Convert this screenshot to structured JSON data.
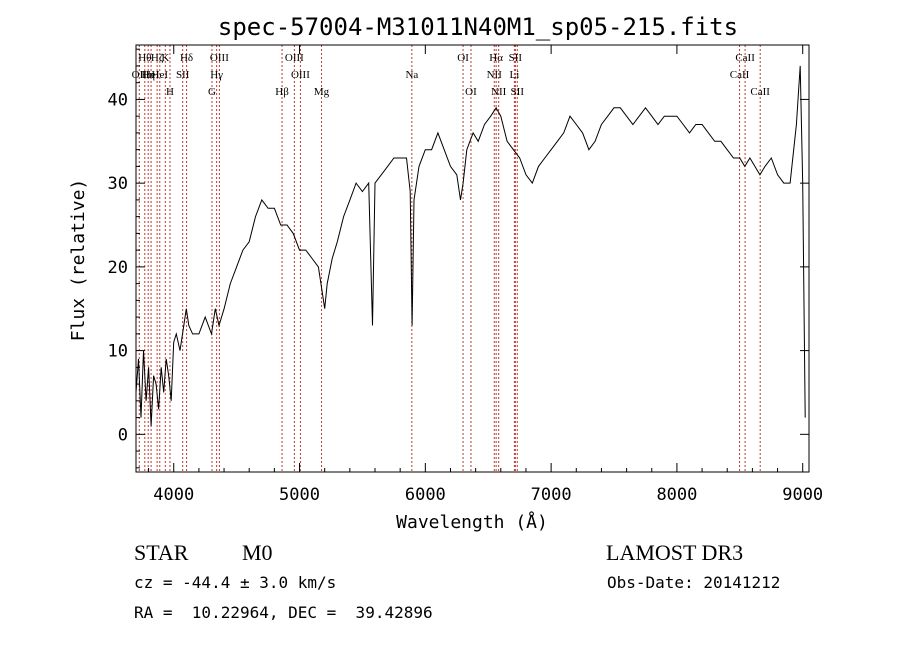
{
  "chart_data": {
    "type": "line",
    "title": "spec-57004-M31011N40M1_sp05-215.fits",
    "xlabel": "Wavelength (Å)",
    "ylabel": "Flux (relative)",
    "xlim": [
      3700,
      9050
    ],
    "ylim": [
      -4.5,
      46.5
    ],
    "x_ticks": [
      4000,
      5000,
      6000,
      7000,
      8000,
      9000
    ],
    "x_tick_labels": [
      "4000",
      "5000",
      "6000",
      "7000",
      "8000",
      "9000"
    ],
    "y_ticks": [
      0,
      10,
      20,
      30,
      40
    ],
    "y_tick_labels": [
      "0",
      "10",
      "20",
      "30",
      "40"
    ],
    "spectrum": [
      [
        3700,
        5
      ],
      [
        3720,
        9
      ],
      [
        3740,
        2
      ],
      [
        3760,
        10
      ],
      [
        3780,
        4
      ],
      [
        3800,
        8
      ],
      [
        3820,
        1
      ],
      [
        3840,
        7
      ],
      [
        3860,
        6
      ],
      [
        3880,
        3
      ],
      [
        3900,
        8
      ],
      [
        3920,
        5
      ],
      [
        3940,
        9
      ],
      [
        3960,
        7
      ],
      [
        3980,
        4
      ],
      [
        4000,
        11
      ],
      [
        4020,
        12
      ],
      [
        4050,
        10
      ],
      [
        4080,
        13
      ],
      [
        4100,
        15
      ],
      [
        4120,
        13
      ],
      [
        4150,
        12
      ],
      [
        4200,
        12
      ],
      [
        4250,
        14
      ],
      [
        4300,
        12
      ],
      [
        4330,
        15
      ],
      [
        4360,
        13
      ],
      [
        4400,
        15
      ],
      [
        4450,
        18
      ],
      [
        4500,
        20
      ],
      [
        4550,
        22
      ],
      [
        4600,
        23
      ],
      [
        4650,
        26
      ],
      [
        4700,
        28
      ],
      [
        4750,
        27
      ],
      [
        4800,
        27
      ],
      [
        4850,
        25
      ],
      [
        4900,
        25
      ],
      [
        4950,
        24
      ],
      [
        5000,
        22
      ],
      [
        5050,
        22
      ],
      [
        5100,
        21
      ],
      [
        5150,
        20
      ],
      [
        5180,
        17
      ],
      [
        5200,
        15
      ],
      [
        5220,
        18
      ],
      [
        5260,
        21
      ],
      [
        5300,
        23
      ],
      [
        5350,
        26
      ],
      [
        5400,
        28
      ],
      [
        5450,
        30
      ],
      [
        5500,
        29
      ],
      [
        5550,
        30
      ],
      [
        5580,
        13
      ],
      [
        5600,
        30
      ],
      [
        5650,
        31
      ],
      [
        5700,
        32
      ],
      [
        5750,
        33
      ],
      [
        5800,
        33
      ],
      [
        5850,
        33
      ],
      [
        5880,
        29
      ],
      [
        5895,
        13
      ],
      [
        5910,
        28
      ],
      [
        5950,
        32
      ],
      [
        6000,
        34
      ],
      [
        6050,
        34
      ],
      [
        6100,
        36
      ],
      [
        6150,
        34
      ],
      [
        6200,
        32
      ],
      [
        6250,
        31
      ],
      [
        6280,
        28
      ],
      [
        6300,
        30
      ],
      [
        6330,
        34
      ],
      [
        6380,
        36
      ],
      [
        6420,
        35
      ],
      [
        6470,
        37
      ],
      [
        6520,
        38
      ],
      [
        6563,
        39
      ],
      [
        6600,
        38
      ],
      [
        6650,
        35
      ],
      [
        6700,
        34
      ],
      [
        6750,
        33
      ],
      [
        6800,
        31
      ],
      [
        6850,
        30
      ],
      [
        6900,
        32
      ],
      [
        6950,
        33
      ],
      [
        7000,
        34
      ],
      [
        7050,
        35
      ],
      [
        7100,
        36
      ],
      [
        7150,
        38
      ],
      [
        7200,
        37
      ],
      [
        7250,
        36
      ],
      [
        7300,
        34
      ],
      [
        7350,
        35
      ],
      [
        7400,
        37
      ],
      [
        7450,
        38
      ],
      [
        7500,
        39
      ],
      [
        7550,
        39
      ],
      [
        7600,
        38
      ],
      [
        7650,
        37
      ],
      [
        7700,
        38
      ],
      [
        7750,
        39
      ],
      [
        7800,
        38
      ],
      [
        7850,
        37
      ],
      [
        7900,
        38
      ],
      [
        7950,
        38
      ],
      [
        8000,
        38
      ],
      [
        8050,
        37
      ],
      [
        8100,
        36
      ],
      [
        8150,
        37
      ],
      [
        8200,
        37
      ],
      [
        8250,
        36
      ],
      [
        8300,
        35
      ],
      [
        8350,
        35
      ],
      [
        8400,
        34
      ],
      [
        8450,
        33
      ],
      [
        8500,
        33
      ],
      [
        8540,
        32
      ],
      [
        8580,
        33
      ],
      [
        8620,
        32
      ],
      [
        8660,
        31
      ],
      [
        8700,
        32
      ],
      [
        8750,
        33
      ],
      [
        8800,
        31
      ],
      [
        8850,
        30
      ],
      [
        8900,
        30
      ],
      [
        8950,
        37
      ],
      [
        8980,
        44
      ],
      [
        9000,
        30
      ],
      [
        9020,
        2
      ]
    ],
    "lines": [
      {
        "x": 3726,
        "label": "OII",
        "row": 2
      },
      {
        "x": 3770,
        "label": "Hθ",
        "row": 1
      },
      {
        "x": 3797,
        "label": "Hη",
        "row": 2
      },
      {
        "x": 3820,
        "label": "HeI",
        "row": 2
      },
      {
        "x": 3868,
        "label": "Hζ",
        "row": 1
      },
      {
        "x": 3889,
        "label": "HeI",
        "row": 2
      },
      {
        "x": 3933,
        "label": "K",
        "row": 1
      },
      {
        "x": 3970,
        "label": "H",
        "row": 3
      },
      {
        "x": 4071,
        "label": "SII",
        "row": 2
      },
      {
        "x": 4102,
        "label": "Hδ",
        "row": 1
      },
      {
        "x": 4304,
        "label": "G",
        "row": 3
      },
      {
        "x": 4341,
        "label": "Hγ",
        "row": 2
      },
      {
        "x": 4363,
        "label": "OIII",
        "row": 1
      },
      {
        "x": 4861,
        "label": "Hβ",
        "row": 3
      },
      {
        "x": 4959,
        "label": "OIII",
        "row": 1
      },
      {
        "x": 5007,
        "label": "OIII",
        "row": 2
      },
      {
        "x": 5175,
        "label": "Mg",
        "row": 3
      },
      {
        "x": 5893,
        "label": "Na",
        "row": 2
      },
      {
        "x": 6300,
        "label": "OI",
        "row": 1
      },
      {
        "x": 6363,
        "label": "OI",
        "row": 3
      },
      {
        "x": 6548,
        "label": "NII",
        "row": 2
      },
      {
        "x": 6563,
        "label": "Hα",
        "row": 1
      },
      {
        "x": 6583,
        "label": "NII",
        "row": 3
      },
      {
        "x": 6708,
        "label": "Li",
        "row": 2
      },
      {
        "x": 6716,
        "label": "SII",
        "row": 1
      },
      {
        "x": 6731,
        "label": "SII",
        "row": 3
      },
      {
        "x": 8498,
        "label": "CaII",
        "row": 2
      },
      {
        "x": 8542,
        "label": "CaII",
        "row": 1
      },
      {
        "x": 8662,
        "label": "CaII",
        "row": 3
      }
    ]
  },
  "info": {
    "object_class": "STAR",
    "subclass": "M0",
    "survey": "LAMOST DR3",
    "cz": "cz = -44.4 ± 3.0 km/s",
    "obs_date": "Obs-Date: 20141212",
    "coords": "RA =  10.22964, DEC =  39.42896"
  }
}
